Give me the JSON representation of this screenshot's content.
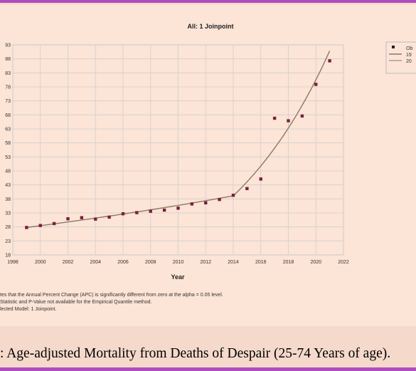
{
  "chart_data": {
    "type": "scatter",
    "title": "All: 1 Joinpoint",
    "xlabel": "Year",
    "ylabel": "",
    "xlim": [
      1998,
      2022
    ],
    "ylim": [
      18,
      93
    ],
    "x_ticks": [
      1998,
      2000,
      2002,
      2004,
      2006,
      2008,
      2010,
      2012,
      2014,
      2016,
      2018,
      2020,
      2022
    ],
    "y_ticks": [
      18,
      23,
      28,
      33,
      38,
      43,
      48,
      53,
      58,
      63,
      68,
      73,
      78,
      83,
      88,
      93
    ],
    "grid": true,
    "legend_position": "top-right",
    "legend": [
      {
        "label": "Ob",
        "marker": "square"
      },
      {
        "label": "19",
        "line": "solid"
      },
      {
        "label": "20",
        "line": "solid"
      }
    ],
    "observed": {
      "x": [
        1999,
        2000,
        2001,
        2002,
        2003,
        2004,
        2005,
        2006,
        2007,
        2008,
        2009,
        2010,
        2011,
        2012,
        2013,
        2014,
        2015,
        2016,
        2017,
        2018,
        2019,
        2020,
        2021
      ],
      "y": [
        27.8,
        28.5,
        29.2,
        30.9,
        31.3,
        30.8,
        31.5,
        32.7,
        33.1,
        33.6,
        34.0,
        34.7,
        36.2,
        36.6,
        37.8,
        39.3,
        41.7,
        45.1,
        66.8,
        65.9,
        67.6,
        78.9,
        87.3
      ]
    },
    "fit_segments": [
      {
        "x": [
          1999,
          2014
        ],
        "apc": 2.3
      },
      {
        "x": [
          2014,
          2021
        ],
        "apc": 12.8
      }
    ],
    "colors": {
      "points": "#7a1f3a",
      "line": "#8a7a66"
    }
  },
  "notes": [
    "tes that the Annual Percent Change (APC) is significantly different from zero at the alpha = 0.05 level.",
    "Statistic and P-Value not available for the Empirical Quantile method.",
    "lected Model: 1 Joinpoint."
  ],
  "caption": ": Age-adjusted Mortality from Deaths of Despair (25-74 Years of age)."
}
